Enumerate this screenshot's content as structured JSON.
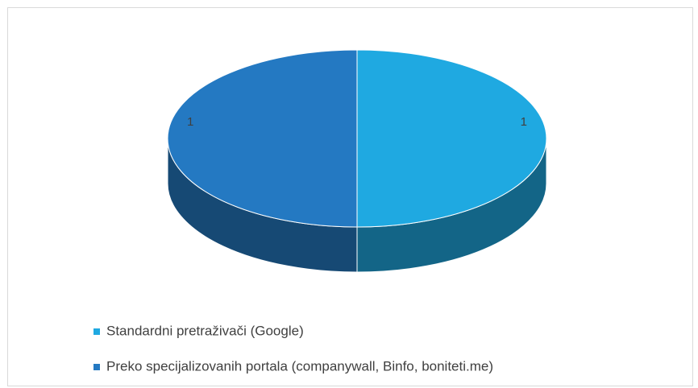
{
  "chart_data": {
    "type": "pie",
    "categories": [
      "Standardni pretraživači (Google)",
      "Preko specijalizovanih portala (companywall, Binfo, boniteti.me)"
    ],
    "values": [
      1,
      1
    ],
    "colors": [
      "#1fa9e1",
      "#2479c2"
    ],
    "legend": "bottom"
  }
}
